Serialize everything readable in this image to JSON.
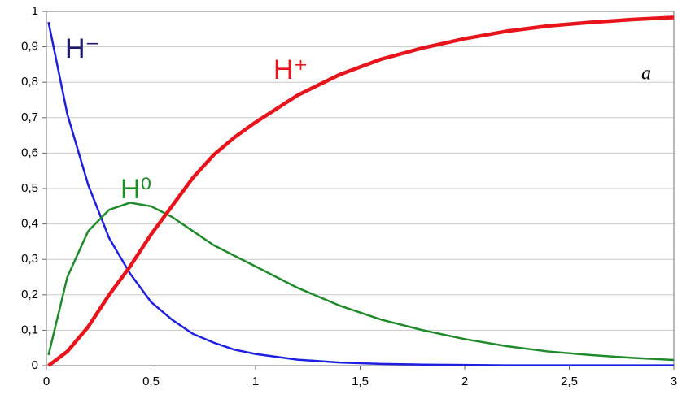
{
  "chart_data": {
    "type": "line",
    "x": [
      0.01,
      0.1,
      0.2,
      0.3,
      0.4,
      0.5,
      0.6,
      0.7,
      0.8,
      0.9,
      1,
      1.2,
      1.4,
      1.6,
      1.8,
      2,
      2.2,
      2.4,
      2.6,
      2.8,
      3
    ],
    "series": [
      {
        "name": "H⁻",
        "color": "#1f1fe0",
        "label_color": "#1a1a6e",
        "values": [
          0.97,
          0.71,
          0.51,
          0.36,
          0.26,
          0.18,
          0.13,
          0.09,
          0.065,
          0.045,
          0.033,
          0.017,
          0.009,
          0.005,
          0.003,
          0.002,
          0.001,
          0.001,
          0.001,
          0.001,
          0.001
        ]
      },
      {
        "name": "H⁰",
        "color": "#1f8a2a",
        "label_color": "#1f8a2a",
        "values": [
          0.03,
          0.25,
          0.38,
          0.44,
          0.46,
          0.45,
          0.42,
          0.38,
          0.34,
          0.31,
          0.28,
          0.22,
          0.17,
          0.13,
          0.1,
          0.075,
          0.055,
          0.04,
          0.03,
          0.022,
          0.016
        ]
      },
      {
        "name": "H⁺",
        "color": "#e8141c",
        "label_color": "#e8141c",
        "values": [
          0,
          0.04,
          0.11,
          0.2,
          0.28,
          0.37,
          0.45,
          0.53,
          0.595,
          0.645,
          0.687,
          0.763,
          0.821,
          0.865,
          0.897,
          0.923,
          0.944,
          0.959,
          0.969,
          0.977,
          0.983
        ]
      }
    ],
    "annotation": "a",
    "xlim": [
      0,
      3
    ],
    "xticks": [
      0,
      {
        "value": 0.5,
        "label": "0,5"
      },
      1,
      {
        "value": 1.5,
        "label": "1,5"
      },
      2,
      {
        "value": 2.5,
        "label": "2,5"
      },
      3
    ],
    "ylim": [
      0,
      1
    ],
    "yticks": [
      0,
      {
        "value": 0.1,
        "label": "0,1"
      },
      {
        "value": 0.2,
        "label": "0,2"
      },
      {
        "value": 0.3,
        "label": "0,3"
      },
      {
        "value": 0.4,
        "label": "0,4"
      },
      {
        "value": 0.5,
        "label": "0,5"
      },
      {
        "value": 0.6,
        "label": "0,6"
      },
      {
        "value": 0.7,
        "label": "0,7"
      },
      {
        "value": 0.8,
        "label": "0,8"
      },
      {
        "value": 0.9,
        "label": "0,9"
      },
      1
    ],
    "grid": true
  }
}
